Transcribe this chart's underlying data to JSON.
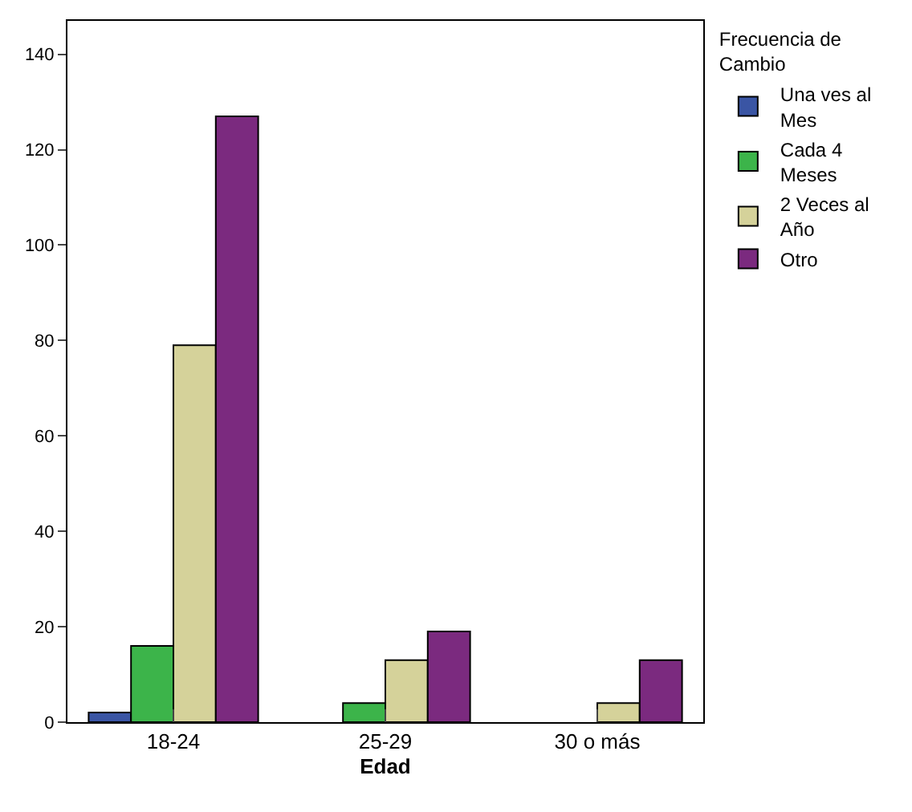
{
  "chart_data": {
    "type": "bar",
    "xlabel": "Edad",
    "legend_title": "Frecuencia de Cambio",
    "categories": [
      "18-24",
      "25-29",
      "30 o más"
    ],
    "series": [
      {
        "name": "Una ves al Mes",
        "color": "#3a55a4",
        "values": [
          2,
          null,
          null
        ]
      },
      {
        "name": "Cada 4 Meses",
        "color": "#3cb44a",
        "values": [
          16,
          4,
          null
        ]
      },
      {
        "name": "2 Veces al Año",
        "color": "#d5d29a",
        "values": [
          79,
          13,
          4
        ]
      },
      {
        "name": "Otro",
        "color": "#7b2a7f",
        "values": [
          127,
          19,
          13
        ]
      }
    ],
    "ylim": [
      0,
      147
    ],
    "yticks": [
      0,
      20,
      40,
      60,
      80,
      100,
      120,
      140
    ],
    "legend": "right"
  }
}
